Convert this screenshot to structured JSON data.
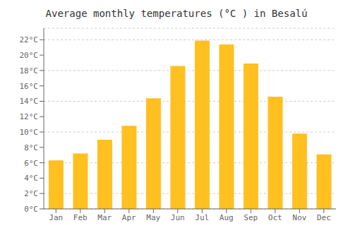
{
  "chart_data": {
    "type": "bar",
    "title": "Average monthly temperatures (°C ) in Besalú",
    "categories": [
      "Jan",
      "Feb",
      "Mar",
      "Apr",
      "May",
      "Jun",
      "Jul",
      "Aug",
      "Sep",
      "Oct",
      "Nov",
      "Dec"
    ],
    "values": [
      6.3,
      7.2,
      9.0,
      10.8,
      14.4,
      18.6,
      21.9,
      21.4,
      18.9,
      14.6,
      9.8,
      7.1
    ],
    "color": "#FFC020",
    "ylim": [
      0,
      23.5
    ],
    "yticks": [
      {
        "value": 0,
        "label": "0°C"
      },
      {
        "value": 2,
        "label": "2°C"
      },
      {
        "value": 4,
        "label": "4°C"
      },
      {
        "value": 6,
        "label": "6°C"
      },
      {
        "value": 8,
        "label": "8°C"
      },
      {
        "value": 10,
        "label": "10°C"
      },
      {
        "value": 12,
        "label": "12°C"
      },
      {
        "value": 14,
        "label": "14°C"
      },
      {
        "value": 16,
        "label": "16°C"
      },
      {
        "value": 18,
        "label": "18°C"
      },
      {
        "value": 20,
        "label": "20°C"
      },
      {
        "value": 22,
        "label": "22°C"
      }
    ],
    "grid": true
  }
}
